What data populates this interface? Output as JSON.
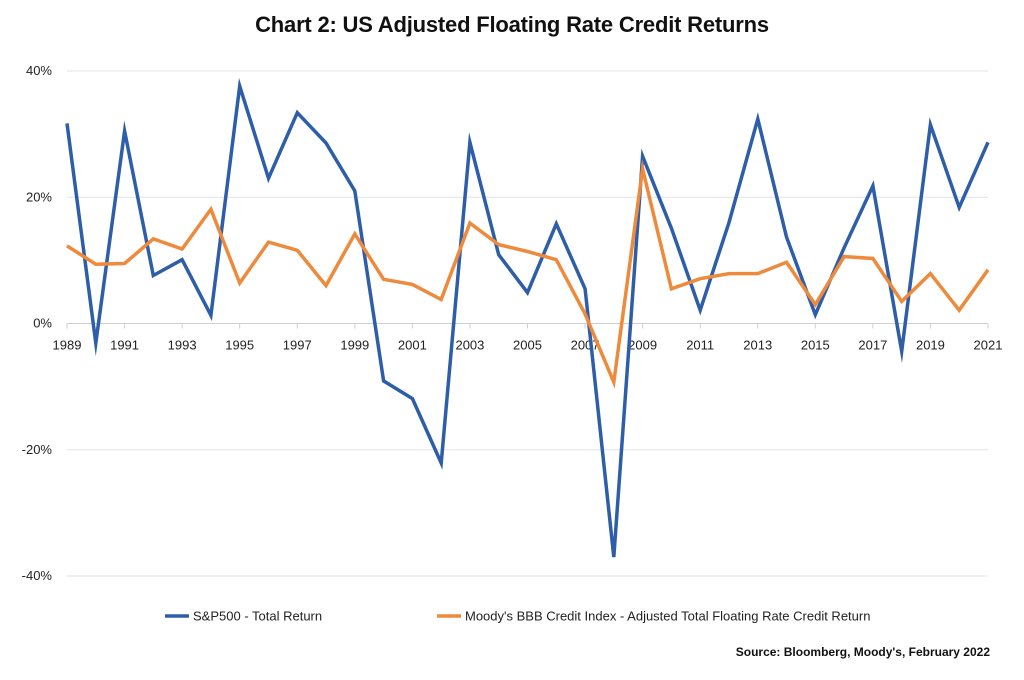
{
  "chart_data": {
    "type": "line",
    "title": "Chart 2: US Adjusted Floating Rate Credit Returns",
    "source": "Source: Bloomberg, Moody's, February 2022",
    "x": [
      1989,
      1990,
      1991,
      1992,
      1993,
      1994,
      1995,
      1996,
      1997,
      1998,
      1999,
      2000,
      2001,
      2002,
      2003,
      2004,
      2005,
      2006,
      2007,
      2008,
      2009,
      2010,
      2011,
      2012,
      2013,
      2014,
      2015,
      2016,
      2017,
      2018,
      2019,
      2020,
      2021
    ],
    "x_tick_labels": [
      "1989",
      "1991",
      "1993",
      "1995",
      "1997",
      "1999",
      "2001",
      "2003",
      "2005",
      "2007",
      "2009",
      "2011",
      "2013",
      "2015",
      "2017",
      "2019",
      "2021"
    ],
    "y_tick_labels": [
      "40%",
      "20%",
      "0%",
      "-20%",
      "-40%"
    ],
    "y_ticks": [
      40,
      20,
      0,
      -20,
      -40
    ],
    "ylim": [
      -40,
      40
    ],
    "grid": true,
    "legend_position": "bottom",
    "series": [
      {
        "name": "S&P500 - Total Return",
        "color": "#2e5ea8",
        "values": [
          31.7,
          -3.1,
          30.5,
          7.6,
          10.1,
          1.3,
          37.6,
          23.0,
          33.4,
          28.6,
          21.0,
          -9.1,
          -11.9,
          -22.1,
          28.7,
          10.9,
          4.9,
          15.8,
          5.5,
          -37.0,
          26.5,
          15.1,
          2.1,
          16.0,
          32.4,
          13.7,
          1.4,
          12.0,
          21.8,
          -4.4,
          31.5,
          18.4,
          28.7
        ]
      },
      {
        "name": "Moody's BBB Credit Index - Adjusted Total Floating Rate Credit Return",
        "color": "#ee8a3c",
        "values": [
          12.3,
          9.4,
          9.5,
          13.4,
          11.8,
          18.1,
          6.4,
          12.9,
          11.6,
          6.0,
          14.2,
          7.0,
          6.2,
          3.8,
          15.9,
          12.5,
          11.4,
          10.1,
          1.5,
          -9.3,
          24.5,
          5.5,
          7.1,
          7.9,
          7.9,
          9.7,
          3.0,
          10.6,
          10.3,
          3.5,
          7.9,
          2.1,
          8.5
        ]
      }
    ]
  }
}
